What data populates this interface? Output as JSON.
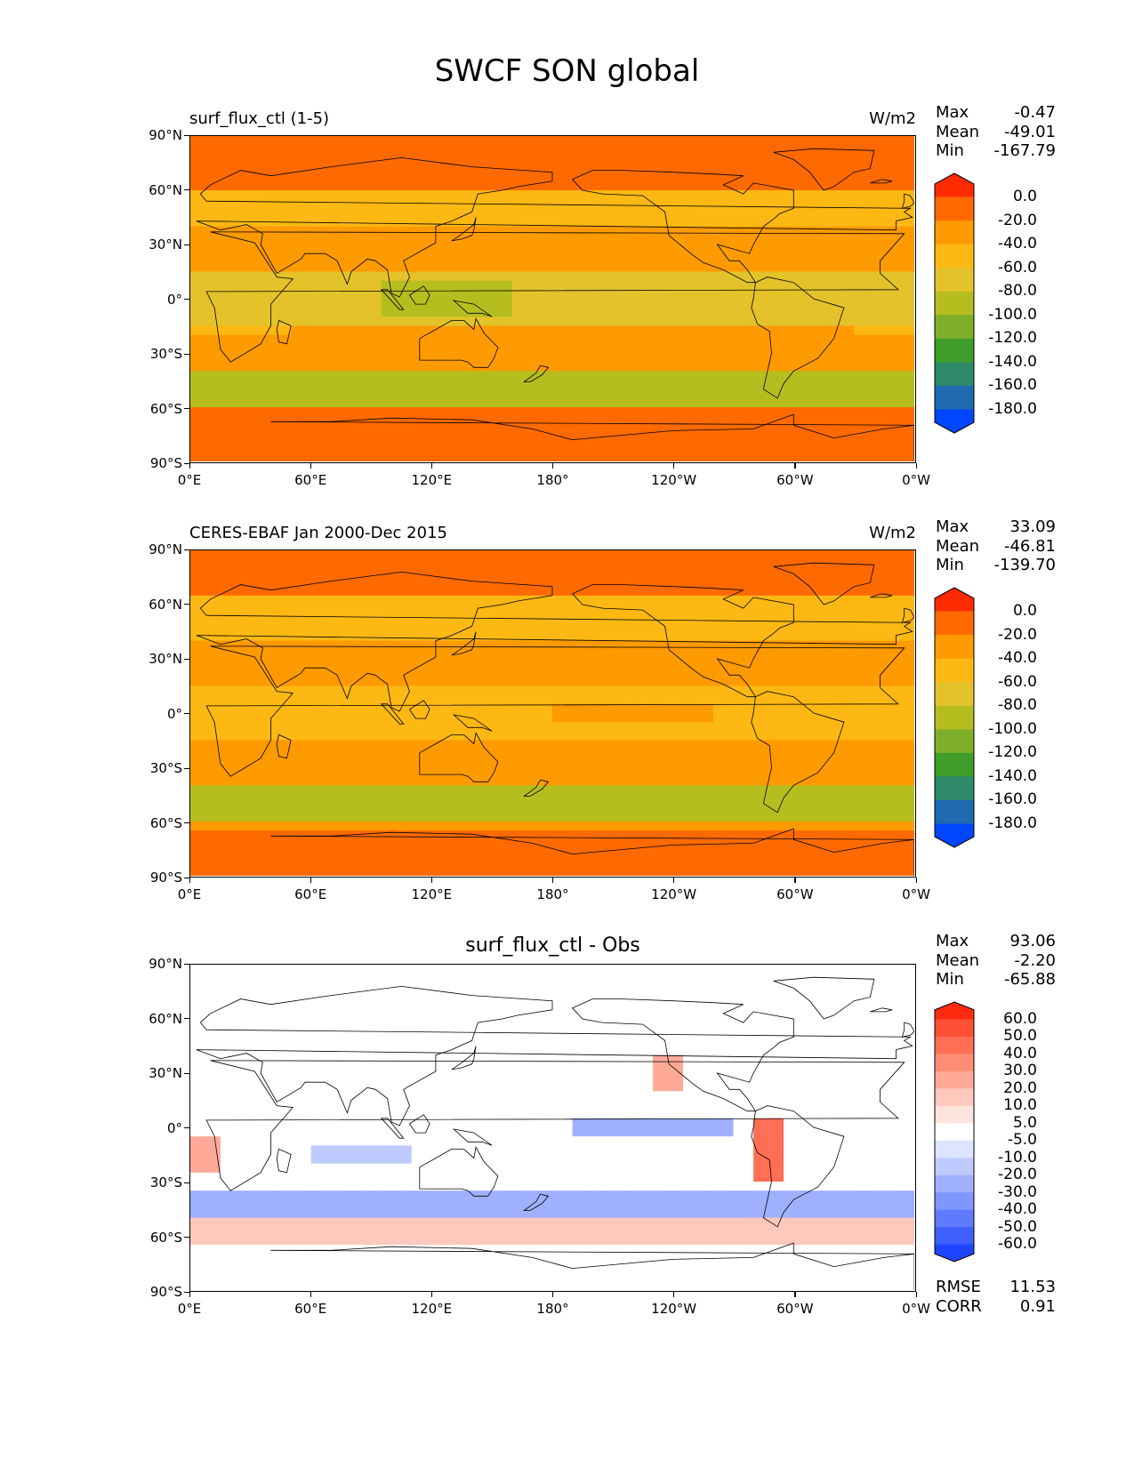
{
  "title": "SWCF SON global",
  "lat_ticks": [
    "90°N",
    "60°N",
    "30°N",
    "0°",
    "30°S",
    "60°S",
    "90°S"
  ],
  "lon_ticks": [
    "0°E",
    "60°E",
    "120°E",
    "180°",
    "120°W",
    "60°W",
    "0°W"
  ],
  "panels": [
    {
      "title": "surf_flux_ctl (1-5)",
      "units": "W/m2",
      "stats": [
        {
          "label": "Max",
          "value": "-0.47"
        },
        {
          "label": "Mean",
          "value": "-49.01"
        },
        {
          "label": "Min",
          "value": "-167.79"
        }
      ],
      "colorbar": {
        "labels": [
          "0.0",
          "-20.0",
          "-40.0",
          "-60.0",
          "-80.0",
          "-100.0",
          "-120.0",
          "-140.0",
          "-160.0",
          "-180.0"
        ],
        "colors": [
          "#ff2a00",
          "#ff6a00",
          "#ff9a00",
          "#fdb813",
          "#e3c22a",
          "#b5be1e",
          "#7fae2a",
          "#3f9e2a",
          "#2f8a6a",
          "#1f6ab0",
          "#0046ff"
        ]
      }
    },
    {
      "title": "CERES-EBAF Jan 2000-Dec 2015",
      "units": "W/m2",
      "stats": [
        {
          "label": "Max",
          "value": "33.09"
        },
        {
          "label": "Mean",
          "value": "-46.81"
        },
        {
          "label": "Min",
          "value": "-139.70"
        }
      ],
      "colorbar": {
        "labels": [
          "0.0",
          "-20.0",
          "-40.0",
          "-60.0",
          "-80.0",
          "-100.0",
          "-120.0",
          "-140.0",
          "-160.0",
          "-180.0"
        ],
        "colors": [
          "#ff2a00",
          "#ff6a00",
          "#ff9a00",
          "#fdb813",
          "#e3c22a",
          "#b5be1e",
          "#7fae2a",
          "#3f9e2a",
          "#2f8a6a",
          "#1f6ab0",
          "#0046ff"
        ]
      }
    },
    {
      "title": "surf_flux_ctl - Obs",
      "units": "",
      "stats": [
        {
          "label": "Max",
          "value": "93.06"
        },
        {
          "label": "Mean",
          "value": "-2.20"
        },
        {
          "label": "Min",
          "value": "-65.88"
        }
      ],
      "colorbar": {
        "labels": [
          "60.0",
          "50.0",
          "40.0",
          "30.0",
          "20.0",
          "10.0",
          "5.0",
          "-5.0",
          "-10.0",
          "-20.0",
          "-30.0",
          "-40.0",
          "-50.0",
          "-60.0"
        ],
        "colors": [
          "#ff2a10",
          "#ff4f35",
          "#ff6f55",
          "#ff8c75",
          "#ffaa98",
          "#ffc8bc",
          "#ffe4dd",
          "#ffffff",
          "#dde4ff",
          "#bfcaff",
          "#9fb0ff",
          "#7f95ff",
          "#5f7aff",
          "#3f5fff",
          "#1f44ff"
        ]
      },
      "bottom_stats": [
        {
          "label": "RMSE",
          "value": "11.53"
        },
        {
          "label": "CORR",
          "value": "0.91"
        }
      ]
    }
  ]
}
